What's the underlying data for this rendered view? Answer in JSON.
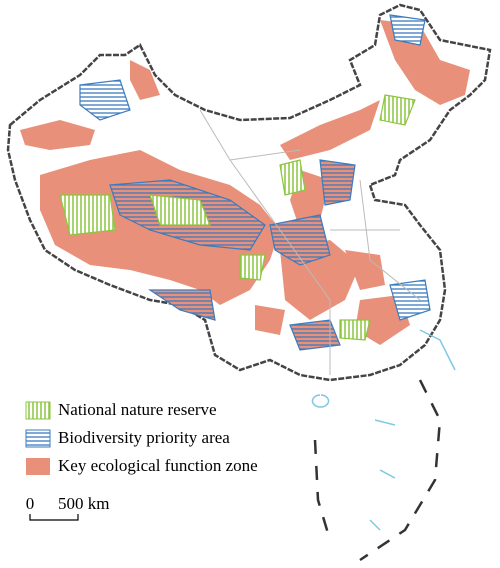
{
  "legend": {
    "items": [
      {
        "label": "National nature reserve"
      },
      {
        "label": "Biodiversity priority area"
      },
      {
        "label": "Key ecological function zone"
      }
    ]
  },
  "scale_bar": {
    "start": "0",
    "end": "500 km"
  }
}
